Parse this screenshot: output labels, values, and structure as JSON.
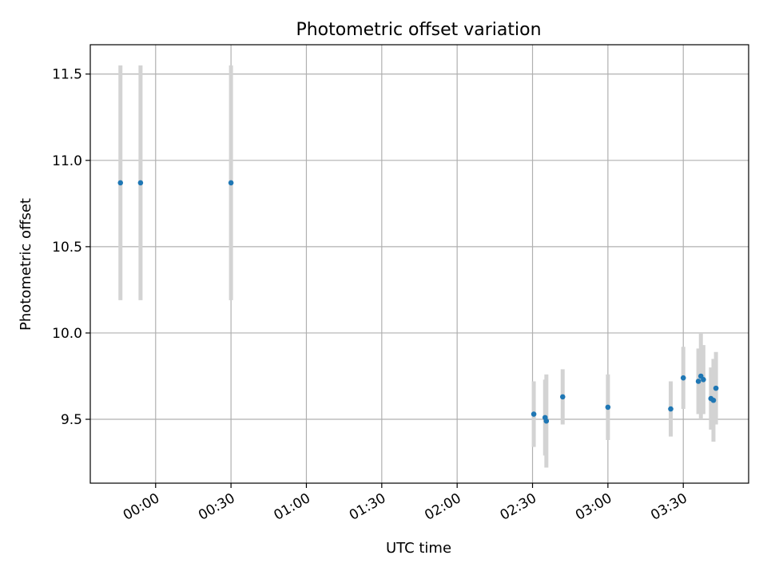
{
  "chart_data": {
    "type": "scatter",
    "title": "Photometric offset variation",
    "xlabel": "UTC time",
    "ylabel": "Photometric offset",
    "x_tick_labels": [
      "00:00",
      "00:30",
      "01:00",
      "01:30",
      "02:00",
      "02:30",
      "03:00",
      "03:30"
    ],
    "x_tick_minutes": [
      0,
      30,
      60,
      90,
      120,
      150,
      180,
      210
    ],
    "y_ticks": [
      9.5,
      10.0,
      10.5,
      11.0,
      11.5
    ],
    "y_tick_labels": [
      "9.5",
      "10.0",
      "10.5",
      "11.0",
      "11.5"
    ],
    "xlim_minutes": [
      -26,
      236
    ],
    "ylim": [
      9.13,
      11.67
    ],
    "grid": true,
    "marker_color": "#1f77b4",
    "errorbar_color": "#d3d3d3",
    "points": [
      {
        "t": -14,
        "y": 10.87,
        "err": 0.68
      },
      {
        "t": -6,
        "y": 10.87,
        "err": 0.68
      },
      {
        "t": 30,
        "y": 10.87,
        "err": 0.68
      },
      {
        "t": 150.5,
        "y": 9.53,
        "err": 0.19
      },
      {
        "t": 155,
        "y": 9.51,
        "err": 0.22
      },
      {
        "t": 155.5,
        "y": 9.49,
        "err": 0.27
      },
      {
        "t": 162,
        "y": 9.63,
        "err": 0.16
      },
      {
        "t": 180,
        "y": 9.57,
        "err": 0.19
      },
      {
        "t": 205,
        "y": 9.56,
        "err": 0.16
      },
      {
        "t": 210,
        "y": 9.74,
        "err": 0.18
      },
      {
        "t": 216,
        "y": 9.72,
        "err": 0.19
      },
      {
        "t": 217,
        "y": 9.75,
        "err": 0.25
      },
      {
        "t": 218,
        "y": 9.73,
        "err": 0.2
      },
      {
        "t": 221,
        "y": 9.62,
        "err": 0.18
      },
      {
        "t": 222,
        "y": 9.61,
        "err": 0.24
      },
      {
        "t": 223,
        "y": 9.68,
        "err": 0.21
      }
    ]
  }
}
